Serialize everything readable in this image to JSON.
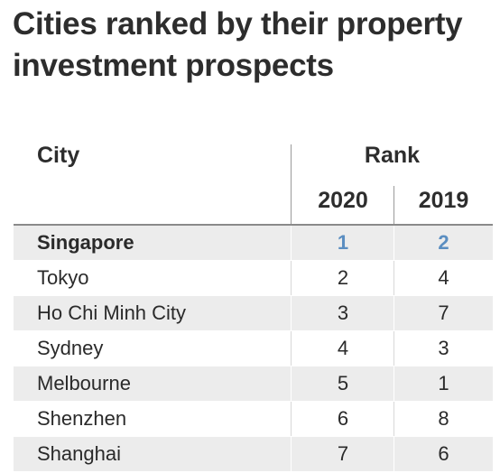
{
  "title": "Cities ranked by their property investment prospects",
  "table": {
    "col_city": "City",
    "col_rank": "Rank",
    "col_2020": "2020",
    "col_2019": "2019",
    "rows": [
      {
        "city": "Singapore",
        "rank_2020": "1",
        "rank_2019": "2"
      },
      {
        "city": "Tokyo",
        "rank_2020": "2",
        "rank_2019": "4"
      },
      {
        "city": "Ho Chi Minh City",
        "rank_2020": "3",
        "rank_2019": "7"
      },
      {
        "city": "Sydney",
        "rank_2020": "4",
        "rank_2019": "3"
      },
      {
        "city": "Melbourne",
        "rank_2020": "5",
        "rank_2019": "1"
      },
      {
        "city": "Shenzhen",
        "rank_2020": "6",
        "rank_2019": "8"
      },
      {
        "city": "Shanghai",
        "rank_2020": "7",
        "rank_2019": "6"
      }
    ]
  },
  "chart_data": {
    "type": "table",
    "title": "Cities ranked by their property investment prospects",
    "columns": [
      "City",
      "2020",
      "2019"
    ],
    "highlight_color": "#5b8ec1",
    "categories": [
      "Singapore",
      "Tokyo",
      "Ho Chi Minh City",
      "Sydney",
      "Melbourne",
      "Shenzhen",
      "Shanghai"
    ],
    "series": [
      {
        "name": "2020",
        "values": [
          1,
          2,
          3,
          4,
          5,
          6,
          7
        ]
      },
      {
        "name": "2019",
        "values": [
          2,
          4,
          7,
          3,
          1,
          8,
          6
        ]
      }
    ]
  }
}
